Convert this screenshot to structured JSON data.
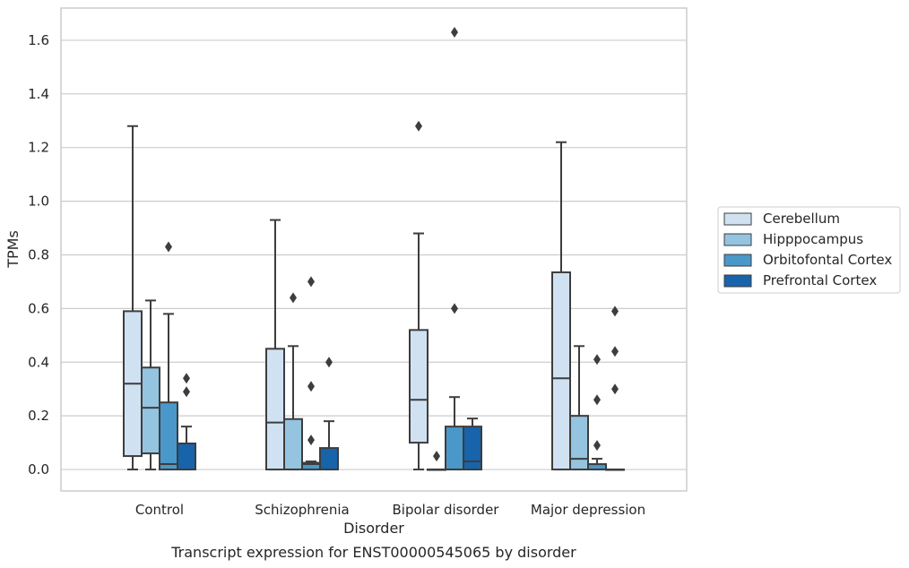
{
  "chart_data": {
    "type": "box",
    "caption": "Transcript expression for ENST00000545065 by disorder",
    "xlabel": "Disorder",
    "ylabel": "TPMs",
    "ylim": [
      -0.08,
      1.72
    ],
    "yticks": [
      0.0,
      0.2,
      0.4,
      0.6,
      0.8,
      1.0,
      1.2,
      1.4,
      1.6
    ],
    "ytick_labels": [
      "0.0",
      "0.2",
      "0.4",
      "0.6",
      "0.8",
      "1.0",
      "1.2",
      "1.4",
      "1.6"
    ],
    "grid": true,
    "legend_placement": "right",
    "categories": [
      "Control",
      "Schizophrenia",
      "Bipolar disorder",
      "Major depression"
    ],
    "series": [
      {
        "name": "Cerebellum",
        "color": "#d0e1f2",
        "boxes": [
          {
            "whislo": 0.0,
            "q1": 0.05,
            "med": 0.32,
            "q3": 0.59,
            "whishi": 1.28,
            "fliers": []
          },
          {
            "whislo": 0.0,
            "q1": 0.0,
            "med": 0.175,
            "q3": 0.45,
            "whishi": 0.93,
            "fliers": []
          },
          {
            "whislo": 0.0,
            "q1": 0.1,
            "med": 0.26,
            "q3": 0.52,
            "whishi": 0.88,
            "fliers": [
              1.28
            ]
          },
          {
            "whislo": 0.0,
            "q1": 0.0,
            "med": 0.34,
            "q3": 0.735,
            "whishi": 1.22,
            "fliers": []
          }
        ]
      },
      {
        "name": "Hipppocampus",
        "color": "#94c4df",
        "boxes": [
          {
            "whislo": 0.0,
            "q1": 0.06,
            "med": 0.23,
            "q3": 0.38,
            "whishi": 0.63,
            "fliers": []
          },
          {
            "whislo": 0.0,
            "q1": 0.0,
            "med": 0.0,
            "q3": 0.188,
            "whishi": 0.46,
            "fliers": [
              0.64
            ]
          },
          {
            "whislo": 0.0,
            "q1": 0.0,
            "med": 0.0,
            "q3": 0.0,
            "whishi": 0.0,
            "fliers": [
              0.05
            ]
          },
          {
            "whislo": 0.0,
            "q1": 0.0,
            "med": 0.04,
            "q3": 0.2,
            "whishi": 0.46,
            "fliers": []
          }
        ]
      },
      {
        "name": "Orbitofontal Cortex",
        "color": "#4a98c9",
        "boxes": [
          {
            "whislo": 0.0,
            "q1": 0.0,
            "med": 0.02,
            "q3": 0.25,
            "whishi": 0.58,
            "fliers": [
              0.83
            ]
          },
          {
            "whislo": 0.0,
            "q1": 0.0,
            "med": 0.02,
            "q3": 0.025,
            "whishi": 0.03,
            "fliers": [
              0.11,
              0.31,
              0.7
            ]
          },
          {
            "whislo": 0.0,
            "q1": 0.0,
            "med": 0.0,
            "q3": 0.16,
            "whishi": 0.27,
            "fliers": [
              0.6,
              1.63
            ]
          },
          {
            "whislo": 0.0,
            "q1": 0.0,
            "med": 0.0,
            "q3": 0.02,
            "whishi": 0.04,
            "fliers": [
              0.09,
              0.26,
              0.41
            ]
          }
        ]
      },
      {
        "name": "Prefrontal Cortex",
        "color": "#1764ab",
        "boxes": [
          {
            "whislo": 0.0,
            "q1": 0.0,
            "med": 0.0,
            "q3": 0.097,
            "whishi": 0.16,
            "fliers": [
              0.29,
              0.34
            ]
          },
          {
            "whislo": 0.0,
            "q1": 0.0,
            "med": 0.0,
            "q3": 0.08,
            "whishi": 0.18,
            "fliers": [
              0.4
            ]
          },
          {
            "whislo": 0.0,
            "q1": 0.0,
            "med": 0.03,
            "q3": 0.16,
            "whishi": 0.19,
            "fliers": []
          },
          {
            "whislo": 0.0,
            "q1": 0.0,
            "med": 0.0,
            "q3": 0.0,
            "whishi": 0.0,
            "fliers": [
              0.3,
              0.44,
              0.59
            ]
          }
        ]
      }
    ]
  }
}
